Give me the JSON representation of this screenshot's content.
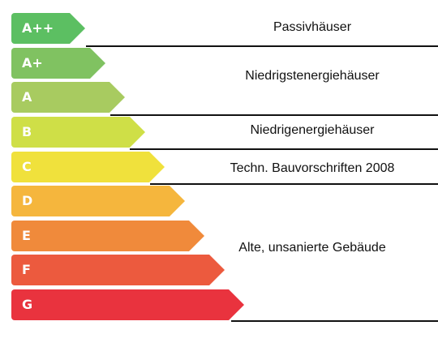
{
  "classes": [
    {
      "label": "A++",
      "color": "#5cbf62"
    },
    {
      "label": "A+",
      "color": "#80c261"
    },
    {
      "label": "A",
      "color": "#a8cb60"
    },
    {
      "label": "B",
      "color": "#cfdf47"
    },
    {
      "label": "C",
      "color": "#f0e13c"
    },
    {
      "label": "D",
      "color": "#f5b63d"
    },
    {
      "label": "E",
      "color": "#f08a3b"
    },
    {
      "label": "F",
      "color": "#ec5a3e"
    },
    {
      "label": "G",
      "color": "#e9333e"
    }
  ],
  "categories": {
    "passive": "Passivhäuser",
    "lowest": "Niedrigstenergiehäuser",
    "low": "Niedrigenergiehäuser",
    "regulation": "Techn. Bauvorschriften 2008",
    "old": "Alte, unsanierte Gebäude"
  }
}
